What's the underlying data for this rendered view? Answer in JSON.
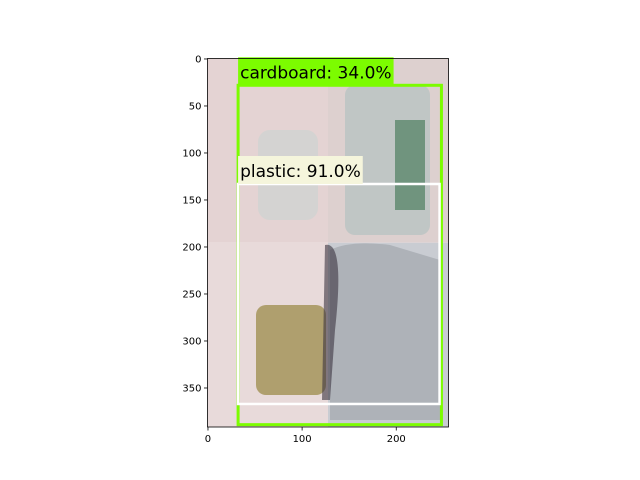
{
  "chart_data": {
    "type": "image",
    "xlim": [
      -0.5,
      255.5
    ],
    "ylim": [
      391.5,
      -0.5
    ],
    "xticks": [
      0,
      100,
      200
    ],
    "yticks": [
      0,
      50,
      100,
      150,
      200,
      250,
      300,
      350
    ],
    "boxes": [
      {
        "label": "cardboard: 34.0%",
        "color": "#7cfc00",
        "x0": 32,
        "y0": 28,
        "x1": 248,
        "y1": 389
      },
      {
        "label": "plastic: 91.0%",
        "color": "#ffffff",
        "label_color": "#f5f5dc",
        "x0": 32,
        "y0": 133,
        "x1": 246,
        "y1": 367
      }
    ]
  }
}
